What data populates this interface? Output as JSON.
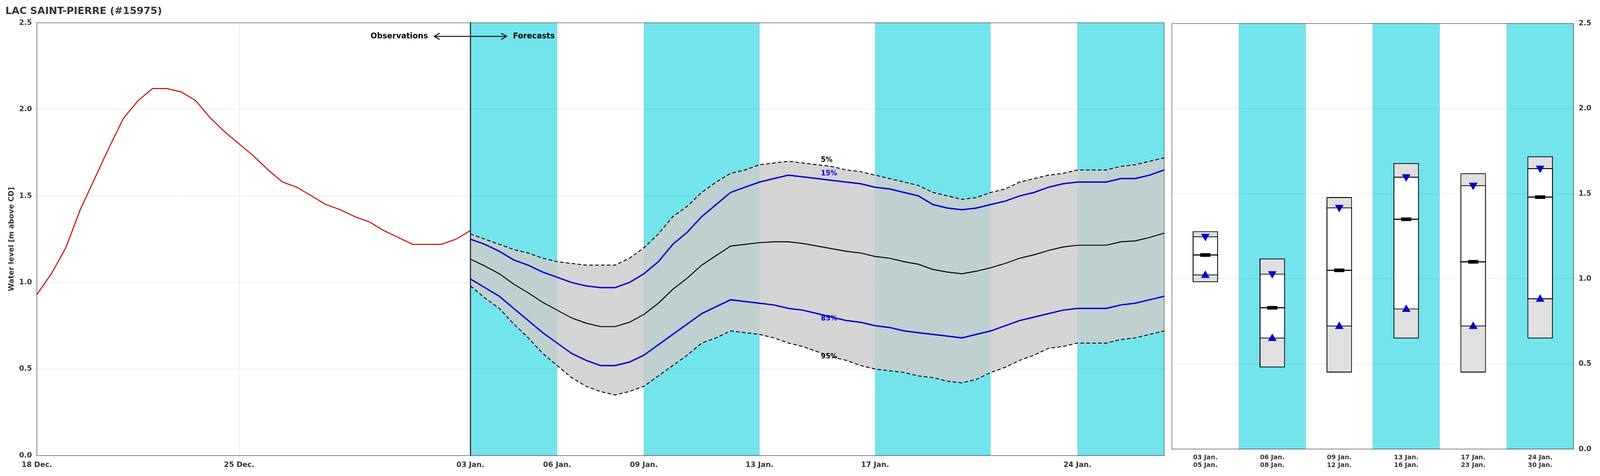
{
  "chart_data": [
    {
      "type": "line",
      "title": "LAC SAINT-PIERRE (#15975)",
      "ylabel": "Water level [m above CD]",
      "xlim": [
        0,
        39
      ],
      "xticks": [
        {
          "value": 0,
          "label": "18 Dec."
        },
        {
          "value": 7,
          "label": "25 Dec."
        },
        {
          "value": 15,
          "label": "03 Jan."
        },
        {
          "value": 18,
          "label": "06 Jan."
        },
        {
          "value": 21,
          "label": "09 Jan."
        },
        {
          "value": 25,
          "label": "13 Jan."
        },
        {
          "value": 29,
          "label": "17 Jan."
        },
        {
          "value": 36,
          "label": "24 Jan."
        }
      ],
      "ylim": [
        0.0,
        2.5
      ],
      "yticks": [
        {
          "value": 0,
          "label": "0.0"
        },
        0.5,
        {
          "value": 1,
          "label": "1.0"
        },
        1.5,
        {
          "value": 2,
          "label": "2.0"
        },
        2.5
      ],
      "grid": true,
      "bands": {
        "color": "#00ccdd",
        "ranges": [
          [
            15,
            18
          ],
          [
            21,
            25
          ],
          [
            29,
            33
          ],
          [
            36,
            39
          ]
        ]
      },
      "annotations": [
        "Observations",
        "Forecasts"
      ],
      "series": [
        {
          "name": "5%",
          "color": "#000000",
          "line_style": "dashed",
          "x": [
            15,
            15.5,
            16,
            16.5,
            17,
            17.5,
            18,
            18.5,
            19,
            19.5,
            20,
            20.5,
            21,
            21.5,
            22,
            22.5,
            23,
            23.5,
            24,
            24.5,
            25,
            25.5,
            26,
            26.5,
            27,
            27.5,
            28,
            28.5,
            29,
            29.5,
            30,
            30.5,
            31,
            31.5,
            32,
            32.5,
            33,
            33.5,
            34,
            34.5,
            35,
            35.5,
            36,
            36.5,
            37,
            37.5,
            38,
            38.5,
            39
          ],
          "values": [
            1.28,
            1.25,
            1.22,
            1.19,
            1.17,
            1.14,
            1.12,
            1.11,
            1.1,
            1.1,
            1.1,
            1.14,
            1.2,
            1.28,
            1.38,
            1.44,
            1.52,
            1.58,
            1.63,
            1.65,
            1.68,
            1.69,
            1.7,
            1.69,
            1.68,
            1.67,
            1.65,
            1.64,
            1.62,
            1.6,
            1.58,
            1.56,
            1.52,
            1.5,
            1.48,
            1.49,
            1.52,
            1.54,
            1.58,
            1.6,
            1.62,
            1.63,
            1.65,
            1.65,
            1.65,
            1.67,
            1.68,
            1.7,
            1.72
          ]
        },
        {
          "name": "15%",
          "color": "#0000cc",
          "line_style": "solid",
          "x": [
            15,
            15.5,
            16,
            16.5,
            17,
            17.5,
            18,
            18.5,
            19,
            19.5,
            20,
            20.5,
            21,
            21.5,
            22,
            22.5,
            23,
            23.5,
            24,
            24.5,
            25,
            25.5,
            26,
            26.5,
            27,
            27.5,
            28,
            28.5,
            29,
            29.5,
            30,
            30.5,
            31,
            31.5,
            32,
            32.5,
            33,
            33.5,
            34,
            34.5,
            35,
            35.5,
            36,
            36.5,
            37,
            37.5,
            38,
            38.5,
            39
          ],
          "values": [
            1.25,
            1.22,
            1.18,
            1.13,
            1.1,
            1.06,
            1.03,
            1.0,
            0.98,
            0.97,
            0.97,
            1.0,
            1.05,
            1.12,
            1.22,
            1.29,
            1.38,
            1.45,
            1.52,
            1.55,
            1.58,
            1.6,
            1.62,
            1.61,
            1.6,
            1.59,
            1.58,
            1.57,
            1.55,
            1.54,
            1.52,
            1.5,
            1.45,
            1.43,
            1.42,
            1.43,
            1.45,
            1.47,
            1.5,
            1.52,
            1.55,
            1.57,
            1.58,
            1.58,
            1.58,
            1.6,
            1.6,
            1.62,
            1.65
          ]
        },
        {
          "name": "85%",
          "color": "#0000cc",
          "line_style": "solid",
          "x": [
            15,
            15.5,
            16,
            16.5,
            17,
            17.5,
            18,
            18.5,
            19,
            19.5,
            20,
            20.5,
            21,
            21.5,
            22,
            22.5,
            23,
            23.5,
            24,
            24.5,
            25,
            25.5,
            26,
            26.5,
            27,
            27.5,
            28,
            28.5,
            29,
            29.5,
            30,
            30.5,
            31,
            31.5,
            32,
            32.5,
            33,
            33.5,
            34,
            34.5,
            35,
            35.5,
            36,
            36.5,
            37,
            37.5,
            38,
            38.5,
            39
          ],
          "values": [
            1.02,
            0.97,
            0.92,
            0.85,
            0.78,
            0.71,
            0.65,
            0.59,
            0.55,
            0.52,
            0.52,
            0.54,
            0.58,
            0.64,
            0.7,
            0.76,
            0.82,
            0.86,
            0.9,
            0.89,
            0.88,
            0.87,
            0.85,
            0.84,
            0.82,
            0.8,
            0.78,
            0.77,
            0.75,
            0.74,
            0.72,
            0.71,
            0.7,
            0.69,
            0.68,
            0.7,
            0.72,
            0.75,
            0.78,
            0.8,
            0.82,
            0.84,
            0.85,
            0.85,
            0.85,
            0.87,
            0.88,
            0.9,
            0.92
          ]
        },
        {
          "name": "95%",
          "color": "#000000",
          "line_style": "dashed",
          "x": [
            15,
            15.5,
            16,
            16.5,
            17,
            17.5,
            18,
            18.5,
            19,
            19.5,
            20,
            20.5,
            21,
            21.5,
            22,
            22.5,
            23,
            23.5,
            24,
            24.5,
            25,
            25.5,
            26,
            26.5,
            27,
            27.5,
            28,
            28.5,
            29,
            29.5,
            30,
            30.5,
            31,
            31.5,
            32,
            32.5,
            33,
            33.5,
            34,
            34.5,
            35,
            35.5,
            36,
            36.5,
            37,
            37.5,
            38,
            38.5,
            39
          ],
          "values": [
            0.98,
            0.91,
            0.85,
            0.76,
            0.68,
            0.59,
            0.52,
            0.45,
            0.4,
            0.37,
            0.35,
            0.37,
            0.4,
            0.46,
            0.52,
            0.58,
            0.65,
            0.68,
            0.72,
            0.71,
            0.7,
            0.68,
            0.65,
            0.63,
            0.6,
            0.57,
            0.55,
            0.52,
            0.5,
            0.49,
            0.48,
            0.46,
            0.45,
            0.43,
            0.42,
            0.44,
            0.48,
            0.51,
            0.55,
            0.58,
            0.62,
            0.63,
            0.65,
            0.65,
            0.65,
            0.67,
            0.68,
            0.7,
            0.72
          ]
        },
        {
          "color": "#000000",
          "line_style": "solid",
          "x": [
            15,
            15.5,
            16,
            16.5,
            17,
            17.5,
            18,
            18.5,
            19,
            19.5,
            20,
            20.5,
            21,
            21.5,
            22,
            22.5,
            23,
            23.5,
            24,
            24.5,
            25,
            25.5,
            26,
            26.5,
            27,
            27.5,
            28,
            28.5,
            29,
            29.5,
            30,
            30.5,
            31,
            31.5,
            32,
            32.5,
            33,
            33.5,
            34,
            34.5,
            35,
            35.5,
            36,
            36.5,
            37,
            37.5,
            38,
            38.5,
            39
          ],
          "values": [
            1.135,
            1.095,
            1.05,
            0.99,
            0.94,
            0.885,
            0.84,
            0.795,
            0.765,
            0.745,
            0.745,
            0.77,
            0.815,
            0.88,
            0.96,
            1.025,
            1.1,
            1.155,
            1.21,
            1.22,
            1.23,
            1.235,
            1.235,
            1.225,
            1.21,
            1.195,
            1.18,
            1.17,
            1.15,
            1.14,
            1.12,
            1.105,
            1.075,
            1.06,
            1.05,
            1.065,
            1.085,
            1.11,
            1.14,
            1.16,
            1.185,
            1.205,
            1.215,
            1.215,
            1.215,
            1.235,
            1.24,
            1.26,
            1.285
          ]
        },
        {
          "color": "#cc0000",
          "line_style": "solid",
          "x": [
            0,
            0.5,
            1,
            1.5,
            2,
            2.5,
            3,
            3.5,
            4,
            4.5,
            5,
            5.5,
            6,
            6.5,
            7,
            7.5,
            8,
            8.5,
            9,
            9.5,
            10,
            10.5,
            11,
            11.5,
            12,
            12.5,
            13,
            13.5,
            14,
            14.5,
            15
          ],
          "values": [
            0.93,
            1.05,
            1.2,
            1.42,
            1.6,
            1.78,
            1.95,
            2.05,
            2.12,
            2.12,
            2.1,
            2.05,
            1.95,
            1.87,
            1.8,
            1.73,
            1.65,
            1.58,
            1.55,
            1.5,
            1.45,
            1.42,
            1.38,
            1.35,
            1.3,
            1.26,
            1.22,
            1.22,
            1.22,
            1.25,
            1.3
          ]
        }
      ]
    },
    {
      "type": "box",
      "categories": [
        [
          "03 Jan.",
          "05 Jan."
        ],
        [
          "06 Jan.",
          "08 Jan."
        ],
        [
          "09 Jan.",
          "12 Jan."
        ],
        [
          "13 Jan.",
          "16 Jan."
        ],
        [
          "17 Jan.",
          "23 Jan."
        ],
        [
          "24 Jan.",
          "30 Jan."
        ]
      ],
      "p5": [
        1.28,
        1.12,
        1.48,
        1.68,
        1.62,
        1.72
      ],
      "p15": [
        1.25,
        1.03,
        1.42,
        1.6,
        1.55,
        1.65
      ],
      "median": [
        1.14,
        0.83,
        1.05,
        1.35,
        1.1,
        1.48
      ],
      "p85": [
        1.02,
        0.65,
        0.72,
        0.82,
        0.72,
        0.88
      ],
      "p95": [
        0.98,
        0.48,
        0.45,
        0.65,
        0.45,
        0.65
      ],
      "color": "#0000cc",
      "ylim": [
        0.0,
        2.5
      ],
      "yticks": [
        {
          "value": 0,
          "label": "0.0"
        },
        0.5,
        {
          "value": 1,
          "label": "1.0"
        },
        1.5,
        {
          "value": 2,
          "label": "2.0"
        },
        2.5
      ],
      "grid": true,
      "bands": {
        "color": "#00ccdd",
        "categories": [
          false,
          true,
          false,
          true,
          false,
          true
        ]
      }
    }
  ]
}
